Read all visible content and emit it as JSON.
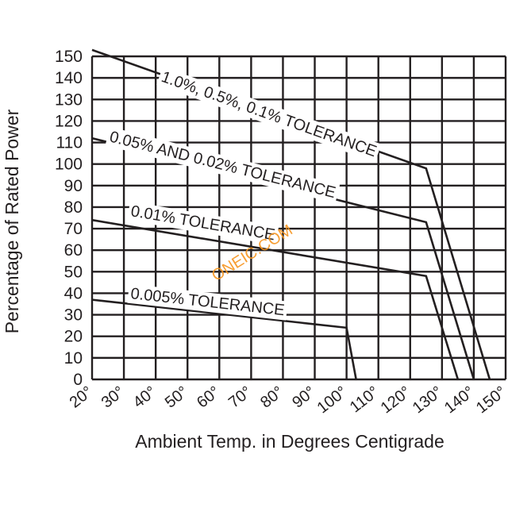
{
  "chart_data": {
    "type": "line",
    "xlabel": "Ambient Temp. in Degrees Centigrade",
    "ylabel": "Percentage of Rated Power",
    "xlim": [
      20,
      150
    ],
    "ylim": [
      0,
      150
    ],
    "x_ticks": [
      20,
      30,
      40,
      50,
      60,
      70,
      80,
      90,
      100,
      110,
      120,
      130,
      140,
      150
    ],
    "x_tick_labels": [
      "20°",
      "30°",
      "40°",
      "50°",
      "60°",
      "70°",
      "80°",
      "90°",
      "100°",
      "110°",
      "120°",
      "130°",
      "140°",
      "150°"
    ],
    "y_ticks": [
      0,
      10,
      20,
      30,
      40,
      50,
      60,
      70,
      80,
      90,
      100,
      110,
      120,
      130,
      140,
      150
    ],
    "grid": true,
    "series": [
      {
        "name": "1.0%, 0.5%, 0.1% TOLERANCE",
        "x": [
          20,
          125,
          145
        ],
        "y": [
          153,
          98,
          0
        ]
      },
      {
        "name": "0.05% AND 0.02% TOLERANCE",
        "x": [
          20,
          125,
          140
        ],
        "y": [
          112,
          73,
          0
        ]
      },
      {
        "name": "0.01% TOLERANCE",
        "x": [
          20,
          125,
          135
        ],
        "y": [
          74,
          48,
          0
        ]
      },
      {
        "name": "0.005% TOLERANCE",
        "x": [
          20,
          100,
          103
        ],
        "y": [
          37,
          24,
          0
        ]
      }
    ]
  },
  "watermark": "ONEIC.COM"
}
